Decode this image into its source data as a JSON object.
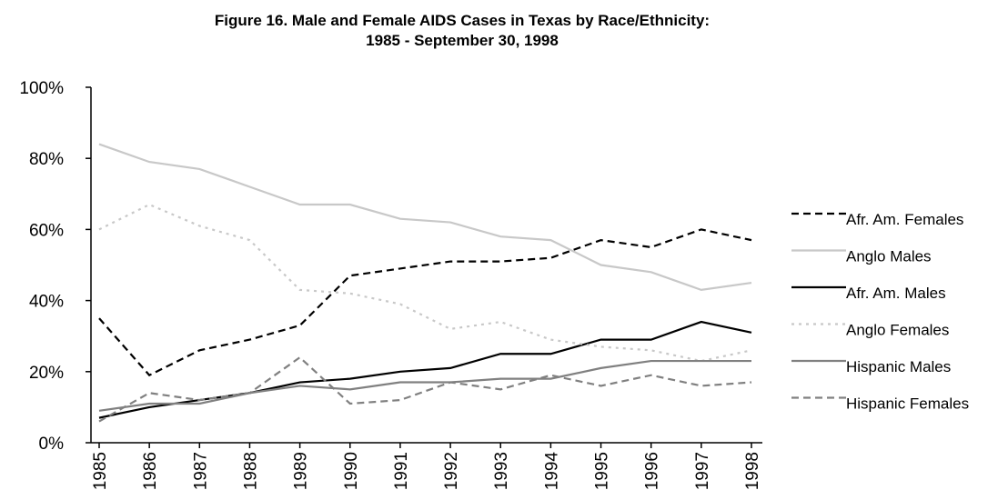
{
  "chart_data": {
    "type": "line",
    "title": "Figure 16. Male and Female AIDS Cases in Texas by Race/Ethnicity:",
    "subtitle": "1985 - September 30, 1998",
    "categories": [
      "1985",
      "1986",
      "1987",
      "1988",
      "1989",
      "1990",
      "1991",
      "1992",
      "1993",
      "1994",
      "1995",
      "1996",
      "1997",
      "1998"
    ],
    "ylim": [
      0,
      100
    ],
    "yticks": [
      {
        "value": 0,
        "label": "0%"
      },
      {
        "value": 20,
        "label": "20%"
      },
      {
        "value": 40,
        "label": "40%"
      },
      {
        "value": 60,
        "label": "60%"
      },
      {
        "value": 80,
        "label": "80%"
      },
      {
        "value": 100,
        "label": "100%"
      }
    ],
    "grid": false,
    "legend": "right",
    "series": [
      {
        "name": "Afr. Am. Females",
        "color": "#000000",
        "style": "dashed",
        "values": [
          35,
          19,
          26,
          29,
          33,
          47,
          49,
          51,
          51,
          52,
          57,
          55,
          60,
          57
        ]
      },
      {
        "name": "Anglo Males",
        "color": "#c8c8c8",
        "style": "solid",
        "values": [
          84,
          79,
          77,
          72,
          67,
          67,
          63,
          62,
          58,
          57,
          50,
          48,
          43,
          45
        ]
      },
      {
        "name": "Afr. Am. Males",
        "color": "#000000",
        "style": "solid",
        "values": [
          7,
          10,
          12,
          14,
          17,
          18,
          20,
          21,
          25,
          25,
          29,
          29,
          34,
          31
        ]
      },
      {
        "name": "Anglo Females",
        "color": "#c8c8c8",
        "style": "dotted",
        "values": [
          60,
          67,
          61,
          57,
          43,
          42,
          39,
          32,
          34,
          29,
          27,
          26,
          23,
          26
        ]
      },
      {
        "name": "Hispanic Males",
        "color": "#808080",
        "style": "solid",
        "values": [
          9,
          11,
          11,
          14,
          16,
          15,
          17,
          17,
          18,
          18,
          21,
          23,
          23,
          23
        ]
      },
      {
        "name": "Hispanic Females",
        "color": "#808080",
        "style": "dashed",
        "values": [
          6,
          14,
          12,
          14,
          24,
          11,
          12,
          17,
          15,
          19,
          16,
          19,
          16,
          17
        ]
      }
    ]
  }
}
